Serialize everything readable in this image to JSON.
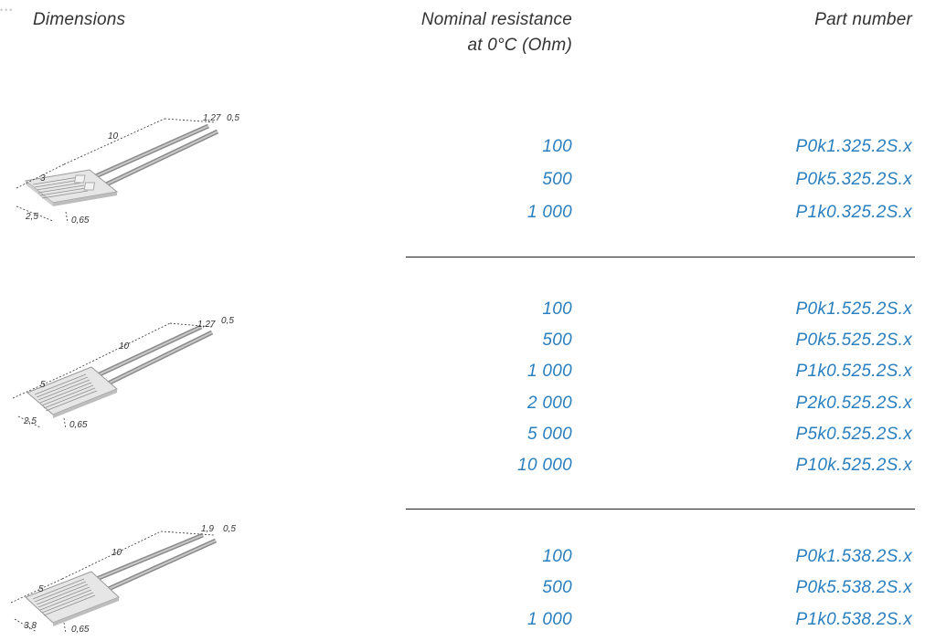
{
  "headers": {
    "dimensions": "Dimensions",
    "resistance_line1": "Nominal resistance",
    "resistance_line2": "at 0°C (Ohm)",
    "part_number": "Part number"
  },
  "colors": {
    "value_text": "#2a7fbf",
    "header_text": "#333333",
    "divider": "#1f1f1f"
  },
  "groups": [
    {
      "drawing": {
        "length": "10",
        "width": "3",
        "depth": "2,5",
        "thickness": "0,65",
        "lead_pitch": "1,27",
        "lead_dia": "0,5"
      },
      "rows": [
        {
          "resistance": "100",
          "part": "P0k1.325.2S.x"
        },
        {
          "resistance": "500",
          "part": "P0k5.325.2S.x"
        },
        {
          "resistance": "1 000",
          "part": "P1k0.325.2S.x"
        }
      ]
    },
    {
      "drawing": {
        "length": "10",
        "width": "5",
        "depth": "2,5",
        "thickness": "0,65",
        "lead_pitch": "1,27",
        "lead_dia": "0,5"
      },
      "rows": [
        {
          "resistance": "100",
          "part": "P0k1.525.2S.x"
        },
        {
          "resistance": "500",
          "part": "P0k5.525.2S.x"
        },
        {
          "resistance": "1 000",
          "part": "P1k0.525.2S.x"
        },
        {
          "resistance": "2 000",
          "part": "P2k0.525.2S.x"
        },
        {
          "resistance": "5 000",
          "part": "P5k0.525.2S.x"
        },
        {
          "resistance": "10 000",
          "part": "P10k.525.2S.x"
        }
      ]
    },
    {
      "drawing": {
        "length": "10",
        "width": "5",
        "depth": "3,8",
        "thickness": "0,65",
        "lead_pitch": "1,9",
        "lead_dia": "0,5"
      },
      "rows": [
        {
          "resistance": "100",
          "part": "P0k1.538.2S.x"
        },
        {
          "resistance": "500",
          "part": "P0k5.538.2S.x"
        },
        {
          "resistance": "1 000",
          "part": "P1k0.538.2S.x"
        }
      ]
    }
  ]
}
